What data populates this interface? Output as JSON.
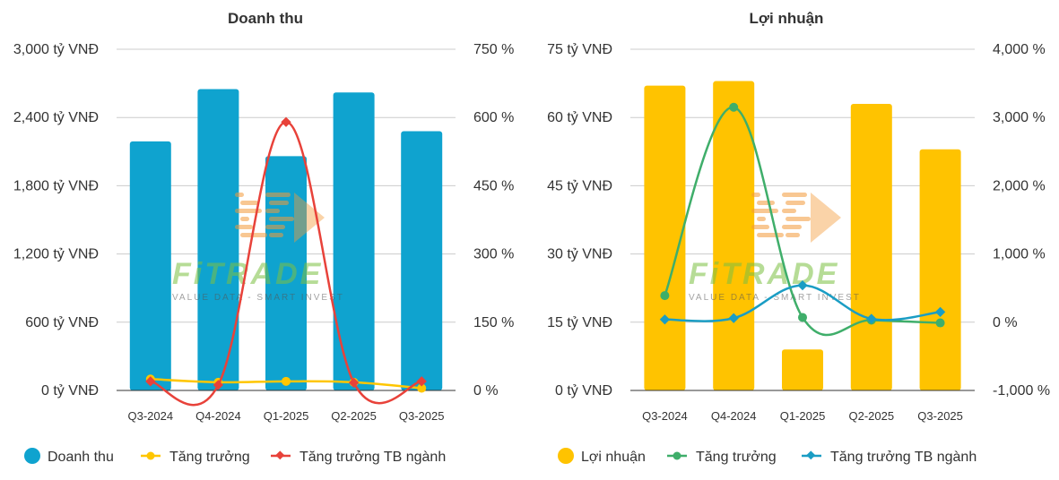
{
  "chart_data": [
    {
      "type": "bar",
      "title": "Doanh thu",
      "categories": [
        "Q3-2024",
        "Q4-2024",
        "Q1-2025",
        "Q2-2025",
        "Q3-2025"
      ],
      "left_axis": {
        "ylim": [
          0,
          3000
        ],
        "ticks": [
          0,
          600,
          1200,
          1800,
          2400,
          3000
        ],
        "tick_labels": [
          "0 tỷ VNĐ",
          "600 tỷ VNĐ",
          "1,200 tỷ VNĐ",
          "1,800 tỷ VNĐ",
          "2,400 tỷ VNĐ",
          "3,000 tỷ VNĐ"
        ]
      },
      "right_axis": {
        "ylim": [
          0,
          750
        ],
        "ticks": [
          0,
          150,
          300,
          450,
          600,
          750
        ],
        "tick_labels": [
          "0 %",
          "150 %",
          "300 %",
          "450 %",
          "600 %",
          "750 %"
        ]
      },
      "series": [
        {
          "name": "Doanh thu",
          "kind": "bar",
          "axis": "left",
          "color": "#0fa3cf",
          "values": [
            2190,
            2650,
            2060,
            2620,
            2280
          ]
        },
        {
          "name": "Tăng trưởng",
          "kind": "line",
          "axis": "right",
          "color": "#ffc600",
          "values": [
            25,
            18,
            20,
            18,
            5
          ]
        },
        {
          "name": "Tăng trưởng TB ngành",
          "kind": "line",
          "axis": "right",
          "color": "#e8423a",
          "values": [
            20,
            12,
            590,
            17,
            20
          ]
        }
      ],
      "legend": [
        "Doanh thu",
        "Tăng trưởng",
        "Tăng trưởng TB ngành"
      ],
      "legend_position": "bottom"
    },
    {
      "type": "bar",
      "title": "Lợi nhuận",
      "categories": [
        "Q3-2024",
        "Q4-2024",
        "Q1-2025",
        "Q2-2025",
        "Q3-2025"
      ],
      "left_axis": {
        "ylim": [
          0,
          75
        ],
        "ticks": [
          0,
          15,
          30,
          45,
          60,
          75
        ],
        "tick_labels": [
          "0 tỷ VNĐ",
          "15 tỷ VNĐ",
          "30 tỷ VNĐ",
          "45 tỷ VNĐ",
          "60 tỷ VNĐ",
          "75 tỷ VNĐ"
        ]
      },
      "right_axis": {
        "ylim": [
          -1000,
          4000
        ],
        "ticks": [
          -1000,
          0,
          1000,
          2000,
          3000,
          4000
        ],
        "tick_labels": [
          "-1,000 %",
          "0 %",
          "1,000 %",
          "2,000 %",
          "3,000 %",
          "4,000 %"
        ]
      },
      "series": [
        {
          "name": "Lợi nhuận",
          "kind": "bar",
          "axis": "left",
          "color": "#ffc300",
          "values": [
            67,
            68,
            9,
            63,
            53
          ]
        },
        {
          "name": "Tăng trưởng",
          "kind": "line",
          "axis": "right",
          "color": "#3fae6a",
          "values": [
            390,
            3150,
            70,
            30,
            -10
          ]
        },
        {
          "name": "Tăng trưởng TB ngành",
          "kind": "line",
          "axis": "right",
          "color": "#1a9dc4",
          "values": [
            40,
            60,
            540,
            50,
            150
          ]
        }
      ],
      "legend": [
        "Lợi nhuận",
        "Tăng trưởng",
        "Tăng trưởng TB ngành"
      ],
      "legend_position": "bottom"
    }
  ],
  "watermark": {
    "brand": "FiTRADE",
    "tagline": "VALUE DATA - SMART INVEST",
    "color_orange": "#f39a3a",
    "color_green": "#7cc142"
  }
}
